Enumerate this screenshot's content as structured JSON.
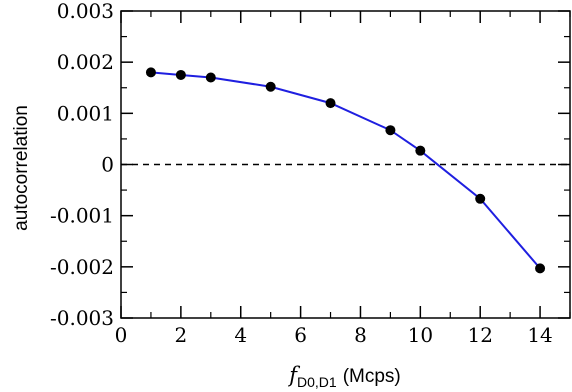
{
  "chart_data": {
    "type": "line",
    "title": "",
    "xlabel": {
      "symbol": "f",
      "subscript": "D0,D1",
      "unit": "(Mcps)"
    },
    "ylabel": "autocorrelation",
    "xlim": [
      0,
      15
    ],
    "ylim": [
      -0.003,
      0.003
    ],
    "x_ticks": [
      0,
      2,
      4,
      6,
      8,
      10,
      12,
      14
    ],
    "y_ticks": [
      -0.003,
      -0.002,
      -0.001,
      0,
      0.001,
      0.002,
      0.003
    ],
    "x_tick_labels": [
      "0",
      "2",
      "4",
      "6",
      "8",
      "10",
      "12",
      "14"
    ],
    "y_tick_labels": [
      "-0.003",
      "-0.002",
      "-0.001",
      "0",
      "0.001",
      "0.002",
      "0.003"
    ],
    "grid": false,
    "reference_line": {
      "y": 0,
      "style": "dashed",
      "color": "#000000"
    },
    "series": [
      {
        "color": "#1f1fe0",
        "marker": "circle",
        "marker_color": "#000000",
        "x": [
          1,
          2,
          3,
          5,
          7,
          9,
          10,
          12,
          14
        ],
        "y": [
          0.0018,
          0.00175,
          0.0017,
          0.00152,
          0.0012,
          0.00067,
          0.00027,
          -0.00067,
          -0.00203
        ]
      }
    ]
  }
}
